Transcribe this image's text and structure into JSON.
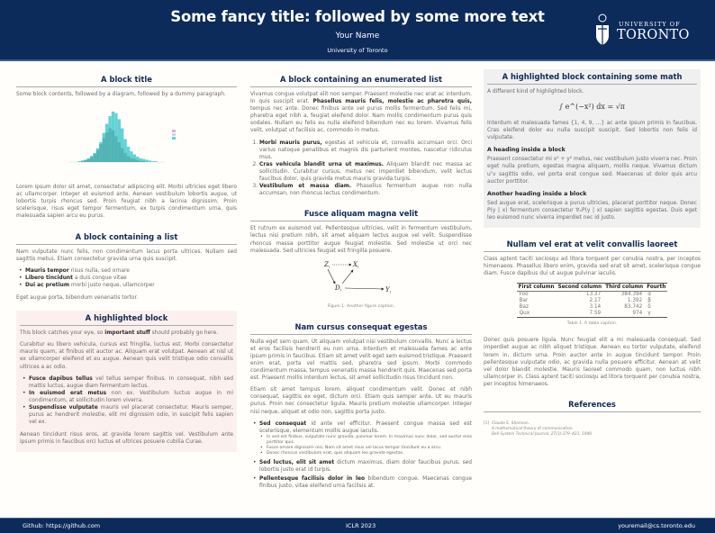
{
  "header": {
    "title": "Some fancy title: followed by some more text",
    "author": "Your Name",
    "institution": "University of Toronto",
    "logo": {
      "line1": "UNIVERSITY OF",
      "line2": "TORONTO"
    },
    "bg_color": "#0c2a5a"
  },
  "footer": {
    "left": "Github: https://github.com",
    "center": "ICLR 2023",
    "right": "youremail@cs.toronto.edu"
  },
  "col1": {
    "b1": {
      "title": "A block title",
      "intro": "Some block contents, followed by a diagram, followed by a dummy paragraph.",
      "para": "Lorem ipsum dolor sit amet, consectetur adipiscing elit. Morbi ultricies eget libero ac ullamcorper. Integer et euismod ante. Aenean vestibulum lobortis augue, ut lobortis turpis rhoncus sed. Proin feugiat nibh a lacinia dignissim. Proin scelerisque, risus eget tempor fermentum, ex turpis condimentum urna, quis malesuada sapien arcu eu purus."
    },
    "b2": {
      "title": "A block containing a list",
      "intro": "Nam vulputate nunc felis, non condimentum lacus porta ultrices. Nullam sed sagittis metus. Etiam consectetur gravida urna quis suscipit.",
      "items": [
        {
          "b": "Mauris tempor",
          "t": " risus nulla, sed ornare"
        },
        {
          "b": "Libero tincidunt",
          "t": " a duis congue vitae"
        },
        {
          "b": "Dui ac pretium",
          "t": " morbi justo neque, ullamcorper"
        }
      ],
      "outro": "Eget augue porta, bibendum venenatis tortor."
    },
    "b3": {
      "title": "A highlighted block",
      "p1a": "This block catches your eye, so ",
      "p1b": "important stuff",
      "p1c": " should probably go here.",
      "p2": "Curabitur eu libero vehicula, cursus est fringilla, luctus est. Morbi consectetur mauris quam, at finibus elit auctor ac. Aliquam erat volutpat. Aenean at nisl ut ex ullamcorper eleifend et eu augue. Aenean quis velit tristique odio convallis ultrices a ac odio.",
      "items": [
        {
          "b": "Fusce dapibus tellus",
          "t": " vel tellus semper finibus. In consequat, nibh sed mattis luctus, augue diam fermentum lectus."
        },
        {
          "b": "In euismod erat metus",
          "t": " non ex. Vestibulum luctus augue in mi condimentum, at sollicitudin lorem viverra."
        },
        {
          "b": "Suspendisse vulputate",
          "t": " mauris vel placerat consectetur. Mauris semper, purus ac hendrerit molestie, elit mi dignissim odio, in suscipit felis sapien vel ex."
        }
      ],
      "p3": "Aenean tincidunt risus eros, at gravida lorem sagittis vel. Vestibulum ante ipsum primis in faucibus orci luctus et ultrices posuere cubilia Curae.",
      "bg_color": "#fcf0ee"
    }
  },
  "col2": {
    "b1": {
      "title": "A block containing an enumerated list",
      "p1a": "Vivamus congue volutpat elit non semper. Praesent molestie nec erat ac interdum. In quis suscipit erat. ",
      "p1b": "Phasellus mauris felis, molestie ac pharetra quis,",
      "p1c": " tempus nec ante. Donec finibus ante vel purus mollis fermentum. Sed felis mi, pharetra eget nibh a, feugiat eleifend dolor. Nam mollis condimentum purus quis sodales. Nullam eu felis eu nulla eleifend bibendum nec eu lorem. Vivamus felis velit, volutpat ut facilisis ac, commodo in metus.",
      "items": [
        {
          "b": "Morbi mauris purus,",
          "t": " egestas at vehicula et, convallis accumsan orci. Orci varius natoque penatibus et magnis dis parturient montes, nascetur ridiculus mus."
        },
        {
          "b": "Cras vehicula blandit urna ut maximus.",
          "t": " Aliquam blandit nec massa ac sollicitudin. Curabitur cursus, metus nec imperdiet bibendum, velit lectus faucibus dolor, quis gravida metus mauris gravida turpis."
        },
        {
          "b": "Vestibulum et massa diam.",
          "t": " Phasellus fermentum augue non nulla accumsan, non rhoncus lectus condimentum."
        }
      ]
    },
    "b2": {
      "title": "Fusce aliquam magna velit",
      "para": "Et rutrum ex euismod vel. Pellentesque ultricies, velit in fermentum vestibulum, lectus nisi pretium nibh, sit amet aliquam lectus augue vel velit. Suspendisse rhoncus massa porttitor augue feugiat molestie. Sed molestie ut orci nec malesuada. Sed ultricies feugiat est fringilla posuere.",
      "diagram": {
        "z": "Z",
        "x": "X",
        "d": "D",
        "y": "Y",
        "sub": "i"
      },
      "caption": "Figure 1. Another figure caption."
    },
    "b3": {
      "title": "Nam cursus consequat egestas",
      "p1": "Nulla eget sem quam. Ut aliquam volutpat nisi vestibulum convallis. Nunc a lectus et eros facilisis hendrerit eu non urna. Interdum et malesuada fames ac ante ipsum primis in faucibus. Etiam sit amet velit eget sem euismod tristique. Praesent enim erat, porta vel mattis sed, pharetra sed ipsum. Morbi commodo condimentum massa, tempus venenatis massa hendrerit quis. Maecenas sed porta est. Praesent mollis interdum lectus, sit amet sollicitudin risus tincidunt non.",
      "p2": "Etiam sit amet tempus lorem, aliquet condimentum velit. Donec et nibh consequat, sagittis ex eget, dictum orci. Etiam quis semper ante. Ut eu mauris purus. Proin nec consectetur ligula. Mauris pretium molestie ullamcorper. Integer nisi neque, aliquet et odio non, sagittis porta justo.",
      "items": [
        {
          "b": "Sed consequat",
          "t": " id ante vel efficitur. Praesent congue massa sed est scelerisque, elementum mollis augue iaculis."
        },
        {
          "b": "Sed luctus, elit sit amet",
          "t": " dictum maximus, diam dolor faucibus purus, sed lobortis justo erat id turpis."
        },
        {
          "b": "Pellentesque facilisis dolor in leo",
          "t": " bibendum congue. Maecenas congue finibus justo, vitae eleifend urna facilisis at."
        }
      ],
      "subitems": [
        "In sed est finibus, vulputate nunc gravida, pulvinar lorem. In maximus nunc dolor, sed auctor eros porttitor quis.",
        "Fusce ornare dignissim nisi. Nam sit amet risus vel lacus tempor tincidunt eu a arcu.",
        "Donec rhoncus vestibulum erat, quis aliquam leo gravida egestas."
      ]
    }
  },
  "col3": {
    "b1": {
      "title": "A highlighted block containing some math",
      "intro": "A different kind of highlighted block.",
      "equation": "∫ e^(−x²) dx = √π",
      "p1": "Interdum et malesuada fames {1, 4, 9, …} ac ante ipsum primis in faucibus. Cras eleifend dolor eu nulla suscipit suscipit. Sed lobortis non felis id vulputate.",
      "h1": "A heading inside a block",
      "p2": "Praesent consectetur mi x² + y² metus, nec vestibulum justo viverra nec. Proin eget nulla pretium, egestas magna aliquam, mollis neque. Vivamus dictum uᵀv sagittis odio, vel porta erat congue sed. Maecenas ut dolor quis arcu auctor porttitor.",
      "h2": "Another heading inside a block",
      "p3": "Sed augue erat, scelerisque a purus ultricies, placerat porttitor neque. Donec P(y | x) fermentum consectetur ∇ₓP(y | x) sapien sagittis egestas. Duis eget leo euismod nunc viverra imperdiet nec id justo.",
      "bg_color": "#f0f0f0"
    },
    "b2": {
      "title": "Nullam vel erat at velit convallis laoreet",
      "p1": "Class aptent taciti sociosqu ad litora torquent per conubia nostra, per inceptos himenaeos. Phasellus libero enim, gravida sed erat sit amet, scelerisque congue diam. Fusce dapibus dui ut augue pulvinar iaculis.",
      "table": {
        "headers": [
          "First column",
          "Second column",
          "Third column",
          "Fourth"
        ],
        "rows": [
          [
            "Foo",
            "13.37",
            "384.394",
            "α"
          ],
          [
            "Bar",
            "2.17",
            "1.392",
            "β"
          ],
          [
            "Baz",
            "3.14",
            "83.742",
            "δ"
          ],
          [
            "Qux",
            "7.59",
            "974",
            "γ"
          ]
        ]
      },
      "caption": "Table 1. A table caption.",
      "p2": "Donec quis posuere ligula. Nunc feugiat elit a mi malesuada consequat. Sed imperdiet augue ac nibh aliquet tristique. Aenean eu tortor vulputate, eleifend lorem in, dictum urna. Proin auctor ante in augue tincidunt tempor. Proin pellentesque vulputate odio, ac gravida nulla posuere efficitur. Aenean at velit vel dolor blandit molestie. Mauris laoreet commodo quam, non luctus nibh ullamcorper in. Class aptent taciti sociosqu ad litora torquent per conubia nostra, per inceptos himenaeos."
    },
    "b3": {
      "title": "References",
      "ref": {
        "num": "[1]",
        "author": "Claude E. Shannon.",
        "title": "A mathematical theory of communication.",
        "journal": "Bell System Technical Journal, 27(3):379–423, 1948."
      }
    }
  }
}
